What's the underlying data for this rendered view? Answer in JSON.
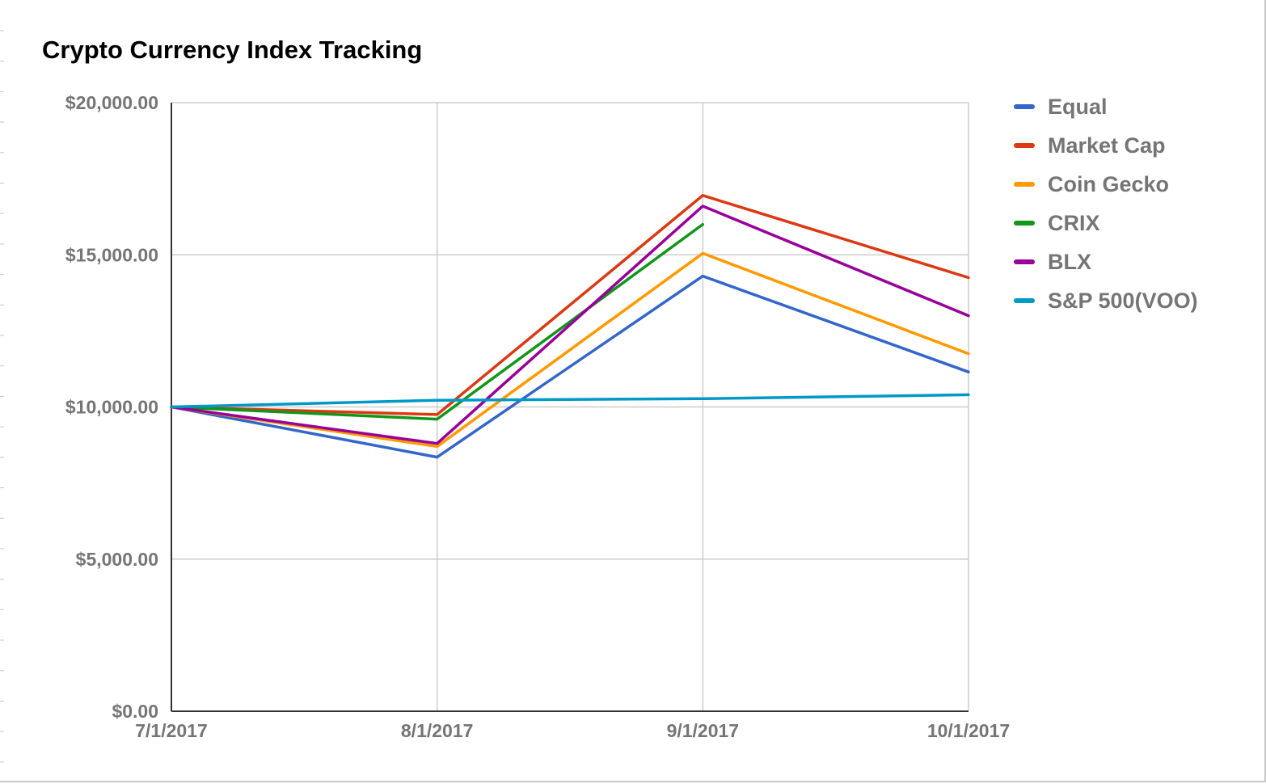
{
  "chart_data": {
    "type": "line",
    "title": "Crypto Currency Index Tracking",
    "xlabel": "",
    "ylabel": "",
    "categories": [
      "7/1/2017",
      "8/1/2017",
      "9/1/2017",
      "10/1/2017"
    ],
    "ylim": [
      0,
      20000
    ],
    "yticks": [
      0,
      5000,
      10000,
      15000,
      20000
    ],
    "ytick_labels": [
      "$0.00",
      "$5,000.00",
      "$10,000.00",
      "$15,000.00",
      "$20,000.00"
    ],
    "grid": true,
    "legend_position": "right",
    "series": [
      {
        "name": "Equal",
        "color": "#3366cc",
        "values": [
          10000,
          8350,
          14300,
          11150
        ]
      },
      {
        "name": "Market Cap",
        "color": "#dc3912",
        "values": [
          10000,
          9750,
          16950,
          14250
        ]
      },
      {
        "name": "Coin Gecko",
        "color": "#ff9900",
        "values": [
          10000,
          8700,
          15050,
          11750
        ]
      },
      {
        "name": "CRIX",
        "color": "#109618",
        "values": [
          10000,
          9600,
          16000,
          null
        ]
      },
      {
        "name": "BLX",
        "color": "#990099",
        "values": [
          10000,
          8800,
          16600,
          13000
        ]
      },
      {
        "name": "S&P 500(VOO)",
        "color": "#0099c6",
        "values": [
          10000,
          10220,
          10270,
          10400
        ]
      }
    ]
  }
}
